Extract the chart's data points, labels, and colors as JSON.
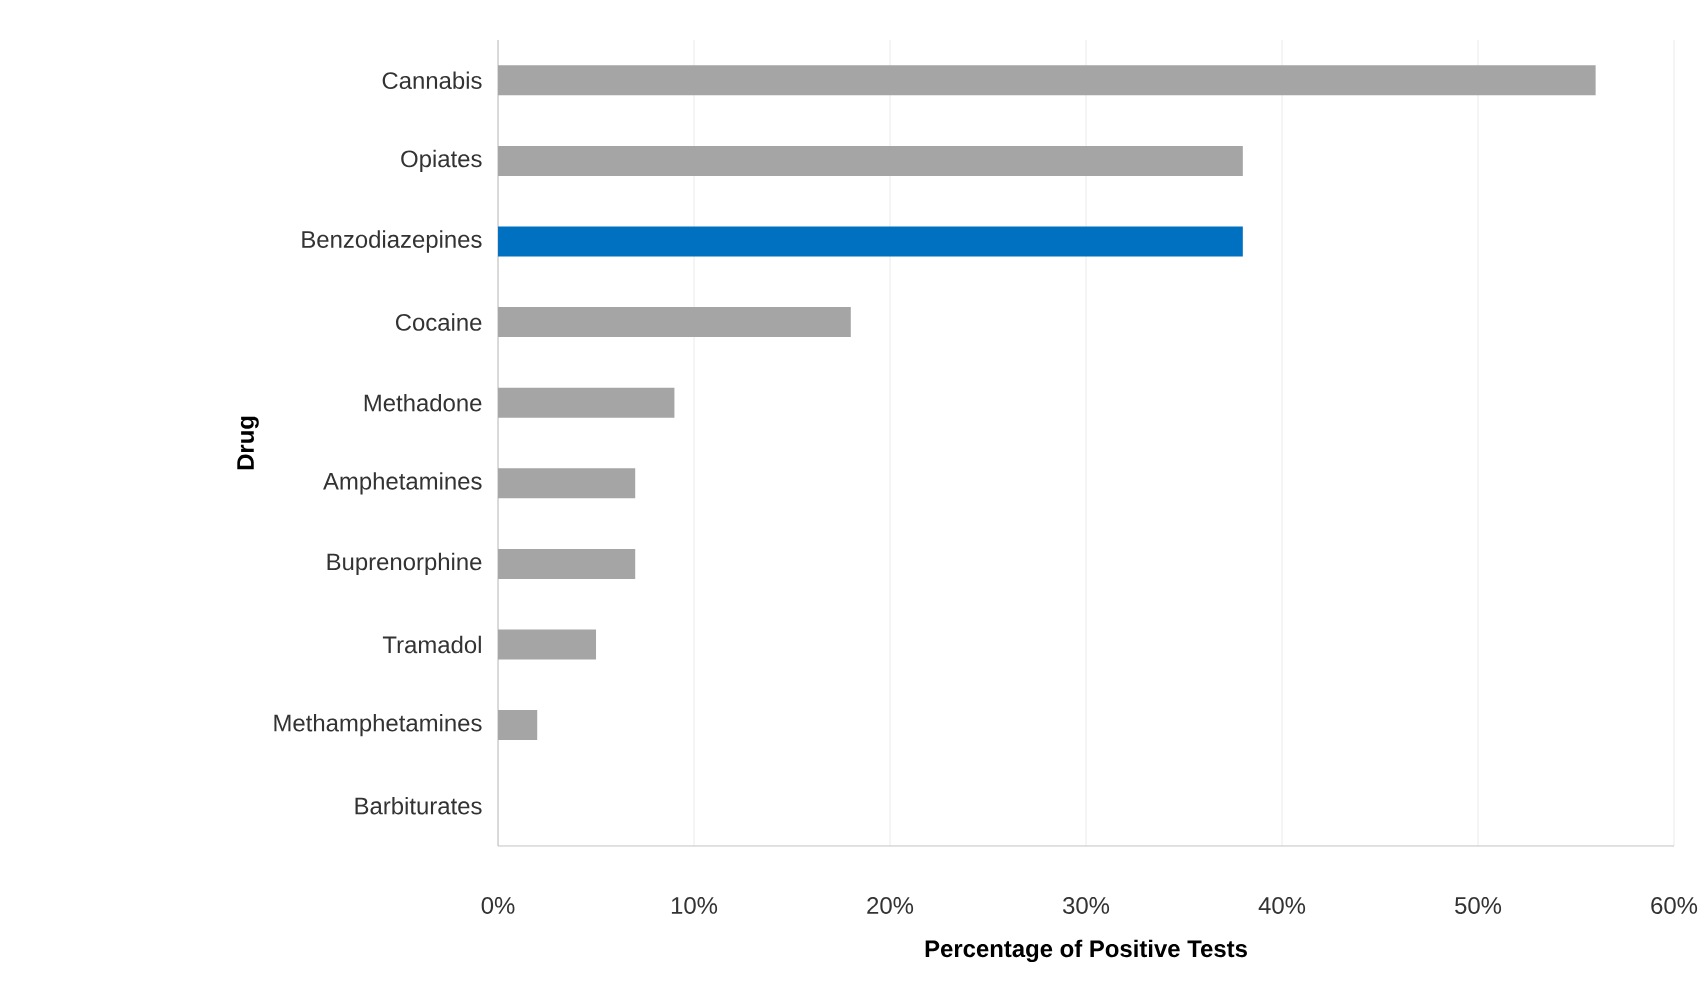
{
  "chart_data": {
    "type": "bar",
    "orientation": "horizontal",
    "xlabel": "Percentage of Positive Tests",
    "ylabel": "Drug",
    "categories": [
      "Cannabis",
      "Opiates",
      "Benzodiazepines",
      "Cocaine",
      "Methadone",
      "Amphetamines",
      "Buprenorphine",
      "Tramadol",
      "Methamphetamines",
      "Barbiturates"
    ],
    "values": [
      56,
      38,
      38,
      18,
      9,
      7,
      7,
      5,
      2,
      0
    ],
    "colors": [
      "#a5a5a5",
      "#a5a5a5",
      "#0070c0",
      "#a5a5a5",
      "#a5a5a5",
      "#a5a5a5",
      "#a5a5a5",
      "#a5a5a5",
      "#a5a5a5",
      "#a5a5a5"
    ],
    "xlim": [
      0,
      60
    ],
    "xticks": [
      {
        "value": 0,
        "label": "0%"
      },
      {
        "value": 10,
        "label": "10%"
      },
      {
        "value": 20,
        "label": "20%"
      },
      {
        "value": 30,
        "label": "30%"
      },
      {
        "value": 40,
        "label": "40%"
      },
      {
        "value": 50,
        "label": "50%"
      },
      {
        "value": 60,
        "label": "60%"
      }
    ],
    "grid": "x"
  }
}
